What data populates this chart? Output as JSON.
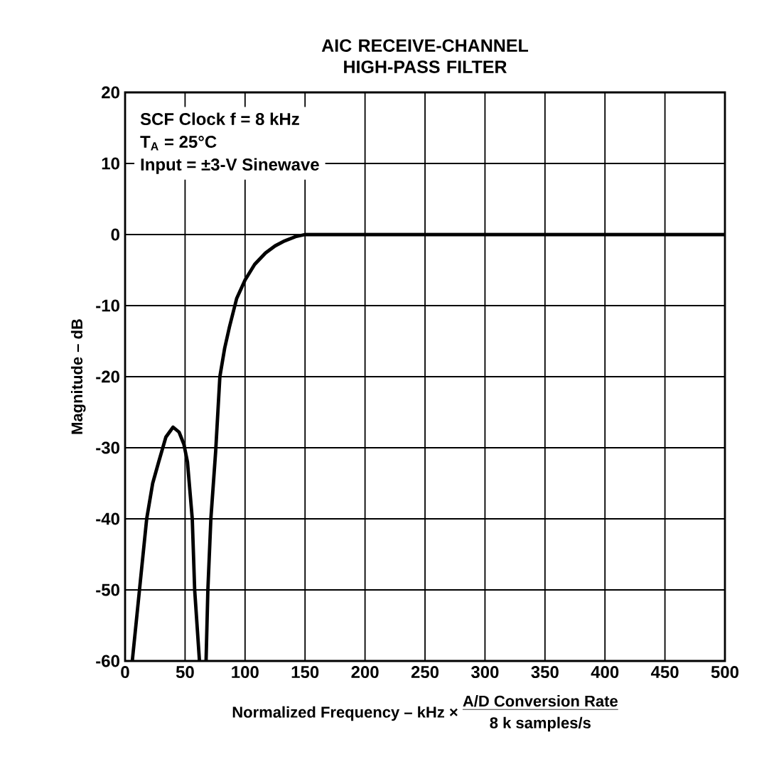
{
  "chart_data": {
    "type": "line",
    "title": "AIC RECEIVE-CHANNEL HIGH-PASS FILTER",
    "xlabel": "Normalized Frequency – kHz ×",
    "ylabel": "Magnitude – dB",
    "annotations": [
      "SCF Clock f = 8 kHz",
      "T$_{A}$ = 25°C",
      "Input = ±3-V Sinewave",
      "A/D Conversion Rate",
      "8 k samples/s"
    ],
    "xlim": [
      0,
      500
    ],
    "ylim": [
      -60,
      20
    ],
    "xticks": [
      0,
      50,
      100,
      150,
      200,
      250,
      300,
      350,
      400,
      450,
      500
    ],
    "yticks": [
      -60,
      -50,
      -40,
      -30,
      -20,
      -10,
      0,
      10,
      20
    ],
    "grid": true,
    "marker": "none",
    "line_style": "solid",
    "series": [
      {
        "color": "#000000",
        "x": [
          6,
          12,
          18,
          23,
          28,
          34,
          40,
          45,
          49,
          52,
          56,
          58,
          62,
          65,
          67.5,
          69,
          71.5,
          75.5,
          79,
          83,
          87,
          93,
          100,
          108,
          117,
          125,
          133,
          142,
          150,
          200,
          300,
          400,
          500
        ],
        "values": [
          -60,
          -50,
          -40,
          -35,
          -32,
          -28.5,
          -27.1,
          -27.8,
          -29.5,
          -32,
          -40,
          -50,
          -60,
          null,
          -60,
          -50,
          -40,
          -30.5,
          -20,
          -16,
          -13,
          -9,
          -6.4,
          -4.2,
          -2.6,
          -1.6,
          -0.9,
          -0.3,
          0,
          0,
          0,
          0,
          0
        ]
      }
    ]
  }
}
